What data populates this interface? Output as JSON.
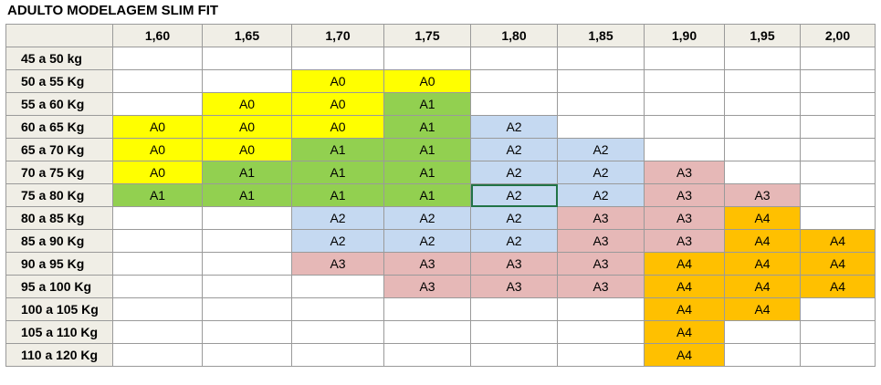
{
  "title": "ADULTO MODELAGEM SLIM FIT",
  "columns": [
    "1,60",
    "1,65",
    "1,70",
    "1,75",
    "1,80",
    "1,85",
    "1,90",
    "1,95",
    "2,00"
  ],
  "colors": {
    "A0": "#ffff00",
    "A1": "#92d050",
    "A2": "#c5d9f1",
    "A3": "#e6b8b7",
    "A4": "#ffc000",
    "empty": "#ffffff"
  },
  "rows": [
    {
      "label": "45 a 50 kg",
      "cells": [
        "",
        "",
        "",
        "",
        "",
        "",
        "",
        "",
        ""
      ]
    },
    {
      "label": "50 a 55 Kg",
      "cells": [
        "",
        "",
        "A0",
        "A0",
        "",
        "",
        "",
        "",
        ""
      ]
    },
    {
      "label": "55 a 60 Kg",
      "cells": [
        "",
        "A0",
        "A0",
        "A1",
        "",
        "",
        "",
        "",
        ""
      ]
    },
    {
      "label": "60 a 65 Kg",
      "cells": [
        "A0",
        "A0",
        "A0",
        "A1",
        "A2",
        "",
        "",
        "",
        ""
      ]
    },
    {
      "label": "65 a 70 Kg",
      "cells": [
        "A0",
        "A0",
        "A1",
        "A1",
        "A2",
        "A2",
        "",
        "",
        ""
      ]
    },
    {
      "label": "70 a 75 Kg",
      "cells": [
        "A0",
        "A1",
        "A1",
        "A1",
        "A2",
        "A2",
        "A3",
        "",
        ""
      ]
    },
    {
      "label": "75 a 80 Kg",
      "cells": [
        "A1",
        "A1",
        "A1",
        "A1",
        "A2",
        "A2",
        "A3",
        "A3",
        ""
      ]
    },
    {
      "label": "80 a 85 Kg",
      "cells": [
        "",
        "",
        "A2",
        "A2",
        "A2",
        "A3",
        "A3",
        "A4",
        ""
      ]
    },
    {
      "label": "85 a 90 Kg",
      "cells": [
        "",
        "",
        "A2",
        "A2",
        "A2",
        "A3",
        "A3",
        "A4",
        "A4"
      ]
    },
    {
      "label": "90 a 95 Kg",
      "cells": [
        "",
        "",
        "A3",
        "A3",
        "A3",
        "A3",
        "A4",
        "A4",
        "A4"
      ]
    },
    {
      "label": "95 a 100 Kg",
      "cells": [
        "",
        "",
        "",
        "A3",
        "A3",
        "A3",
        "A4",
        "A4",
        "A4"
      ]
    },
    {
      "label": "100 a 105 Kg",
      "cells": [
        "",
        "",
        "",
        "",
        "",
        "",
        "A4",
        "A4",
        ""
      ]
    },
    {
      "label": "105 a 110 Kg",
      "cells": [
        "",
        "",
        "",
        "",
        "",
        "",
        "A4",
        "",
        ""
      ]
    },
    {
      "label": "110 a 120 Kg",
      "cells": [
        "",
        "",
        "",
        "",
        "",
        "",
        "A4",
        "",
        ""
      ]
    }
  ]
}
